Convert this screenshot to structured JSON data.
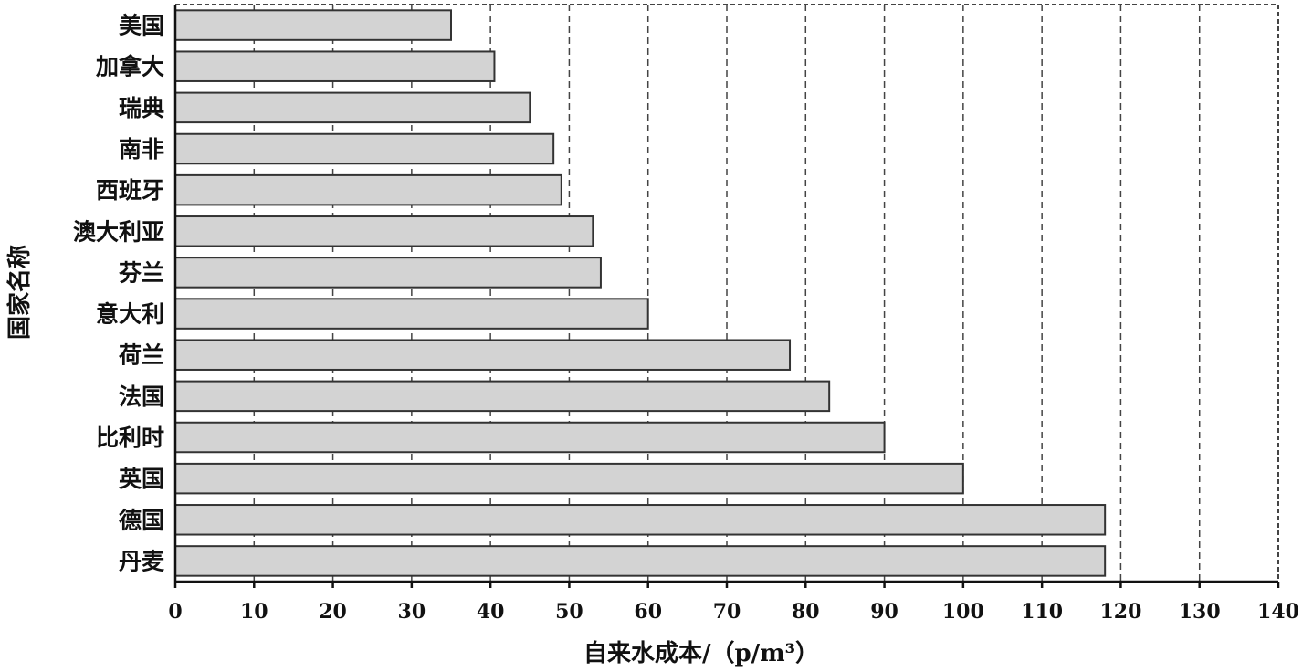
{
  "chart_data": {
    "type": "bar",
    "orientation": "horizontal",
    "categories": [
      "美国",
      "加拿大",
      "瑞典",
      "南非",
      "西班牙",
      "澳大利亚",
      "芬兰",
      "意大利",
      "荷兰",
      "法国",
      "比利时",
      "英国",
      "德国",
      "丹麦"
    ],
    "values": [
      35,
      40.5,
      45,
      48,
      49,
      53,
      54,
      60,
      78,
      83,
      90,
      100,
      118,
      118
    ],
    "xlabel": "自来水成本/（p/m³）",
    "ylabel": "国家名称",
    "xlim": [
      0,
      140
    ],
    "xticks": [
      0,
      10,
      20,
      30,
      40,
      50,
      60,
      70,
      80,
      90,
      100,
      110,
      120,
      130,
      140
    ],
    "grid": "vertical dashed"
  }
}
